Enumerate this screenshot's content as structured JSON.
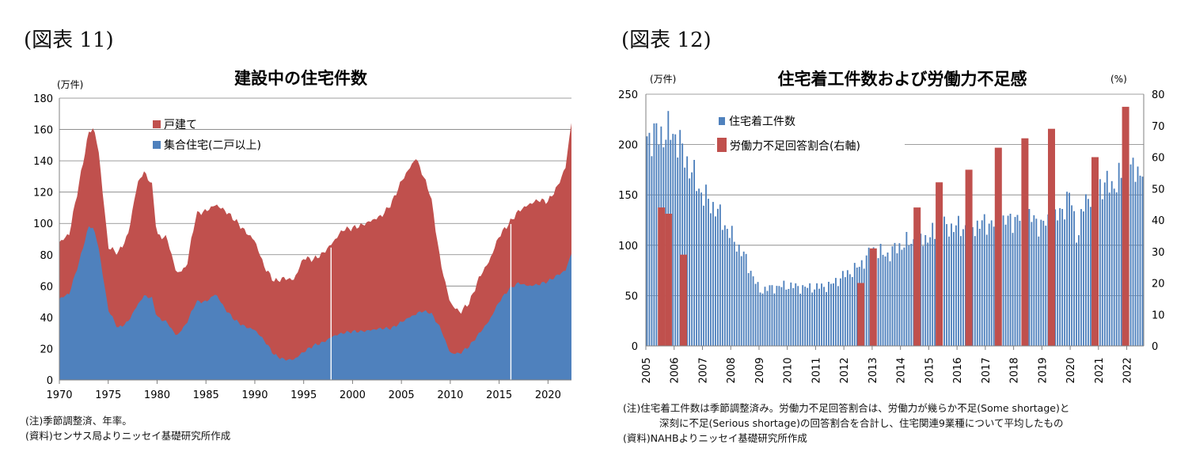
{
  "left_panel": {
    "figure_label": "(図表 11)",
    "notes": [
      "(注)季節調整済、年率。",
      "(資料)センサス局よりニッセイ基礎研究所作成"
    ]
  },
  "right_panel": {
    "figure_label": "(図表 12)",
    "notes": [
      "(注)住宅着工件数は季節調整済み。労働力不足回答割合は、労働力が幾らか不足(Some shortage)と",
      "深刻に不足(Serious shortage)の回答割合を合計し、住宅関連9業種について平均したもの",
      "(資料)NAHBよりニッセイ基礎研究所作成"
    ]
  },
  "colors": {
    "single_family": "#c0504d",
    "multi_family": "#4f81bd",
    "starts_bar": "#4f81bd",
    "shortage_bar": "#c0504d",
    "grid": "#7f7f7f"
  },
  "chart_data": [
    {
      "type": "area",
      "title": "建設中の住宅件数",
      "ylabel": "(万件)",
      "xlabel": "",
      "ylim": [
        0,
        180
      ],
      "yticks": [
        0,
        20,
        40,
        60,
        80,
        100,
        120,
        140,
        160,
        180
      ],
      "xlim": [
        1970,
        2022.4
      ],
      "xticks": [
        1970,
        1975,
        1980,
        1985,
        1990,
        1995,
        2000,
        2005,
        2010,
        2015,
        2020
      ],
      "grid": true,
      "legend_position": "top-left",
      "stacked": true,
      "x": [
        1970,
        1971,
        1972,
        1973,
        1973.5,
        1974,
        1975,
        1976,
        1977,
        1978,
        1978.7,
        1979.5,
        1980,
        1981,
        1982,
        1983,
        1984,
        1985,
        1986,
        1987,
        1988,
        1989,
        1990,
        1991,
        1992,
        1993,
        1994,
        1995,
        1996,
        1997,
        1998,
        1999,
        2000,
        2001,
        2002,
        2003,
        2004,
        2005,
        2005.8,
        2006.5,
        2007,
        2008,
        2009,
        2010,
        2011,
        2012,
        2013,
        2014,
        2015,
        2016,
        2017,
        2018,
        2019,
        2020,
        2021,
        2021.8,
        2022.4
      ],
      "series": [
        {
          "name": "集合住宅(二戸以上)",
          "values": [
            52,
            55,
            75,
            98,
            97,
            85,
            45,
            33,
            37,
            48,
            54,
            52,
            40,
            37,
            28,
            36,
            50,
            50,
            55,
            45,
            38,
            34,
            32,
            25,
            16,
            13,
            13,
            18,
            22,
            24,
            28,
            30,
            31,
            31,
            32,
            33,
            33,
            37,
            40,
            42,
            44,
            43,
            33,
            17,
            17,
            22,
            30,
            38,
            50,
            58,
            62,
            60,
            61,
            63,
            67,
            70,
            81
          ]
        },
        {
          "name": "戸建て",
          "values": [
            36,
            38,
            50,
            60,
            64,
            62,
            40,
            48,
            55,
            78,
            79,
            72,
            52,
            54,
            40,
            36,
            56,
            58,
            57,
            63,
            64,
            61,
            57,
            47,
            47,
            52,
            51,
            60,
            55,
            57,
            60,
            66,
            66,
            68,
            70,
            72,
            80,
            90,
            95,
            100,
            90,
            75,
            42,
            32,
            26,
            28,
            36,
            38,
            42,
            42,
            46,
            52,
            54,
            51,
            57,
            66,
            84
          ]
        }
      ]
    },
    {
      "type": "bar",
      "title": "住宅着工件数および労働力不足感",
      "ylabel": "(万件)",
      "y2label": "(%)",
      "ylim": [
        0,
        250
      ],
      "yticks": [
        0,
        50,
        100,
        150,
        200,
        250
      ],
      "y2lim": [
        0,
        80
      ],
      "y2ticks": [
        0,
        10,
        20,
        30,
        40,
        50,
        60,
        70,
        80
      ],
      "xlim": [
        2005,
        2022.6
      ],
      "xticks": [
        2005,
        2006,
        2007,
        2008,
        2009,
        2010,
        2011,
        2012,
        2013,
        2014,
        2015,
        2016,
        2017,
        2018,
        2019,
        2020,
        2021,
        2022
      ],
      "grid": true,
      "legend_position": "top-left",
      "series": [
        {
          "name": "住宅着工件数",
          "axis": "left",
          "x": [
            2005,
            2005.5,
            2006,
            2006.5,
            2007,
            2007.5,
            2008,
            2008.5,
            2009,
            2009.5,
            2010,
            2010.5,
            2011,
            2011.5,
            2012,
            2012.5,
            2013,
            2013.5,
            2014,
            2014.5,
            2015,
            2015.5,
            2016,
            2016.5,
            2017,
            2017.5,
            2018,
            2018.5,
            2019,
            2019.5,
            2020,
            2020.25,
            2020.5,
            2021,
            2021.5,
            2022,
            2022.4
          ],
          "values": [
            208,
            210,
            212,
            180,
            150,
            135,
            110,
            88,
            55,
            58,
            60,
            58,
            58,
            60,
            70,
            78,
            95,
            90,
            100,
            105,
            108,
            118,
            118,
            118,
            122,
            122,
            126,
            128,
            120,
            126,
            150,
            105,
            145,
            160,
            160,
            172,
            175
          ]
        },
        {
          "name": "労働力不足回答割合(右軸)",
          "axis": "right",
          "x": [
            2005.55,
            2005.8,
            2006.33,
            2012.6,
            2013.04,
            2014.59,
            2015.37,
            2016.42,
            2017.46,
            2018.4,
            2019.34,
            2020.88,
            2021.96
          ],
          "values": [
            44,
            42,
            29,
            20,
            31,
            44,
            52,
            56,
            63,
            66,
            69,
            60,
            76
          ]
        }
      ]
    }
  ]
}
